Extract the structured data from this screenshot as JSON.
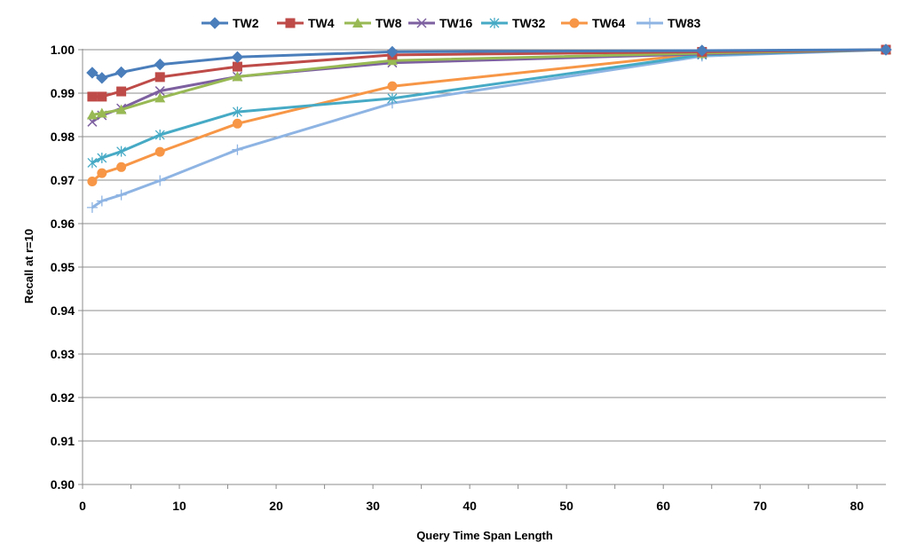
{
  "chart_data": {
    "type": "line",
    "title": "",
    "xlabel": "Query Time Span Length",
    "ylabel": "Recall at r=10",
    "xlim": [
      0,
      83
    ],
    "ylim": [
      0.9,
      1.0
    ],
    "xticks": [
      0,
      10,
      20,
      30,
      40,
      50,
      60,
      70,
      80
    ],
    "xtick_labels": [
      "0",
      "10",
      "20",
      "30",
      "40",
      "50",
      "60",
      "70",
      "80"
    ],
    "yticks": [
      0.9,
      0.91,
      0.92,
      0.93,
      0.94,
      0.95,
      0.96,
      0.97,
      0.98,
      0.99,
      1.0
    ],
    "ytick_labels": [
      "0.90",
      "0.91",
      "0.92",
      "0.93",
      "0.94",
      "0.95",
      "0.96",
      "0.97",
      "0.98",
      "0.99",
      "1.00"
    ],
    "grid": "horizontal",
    "legend_position": "top",
    "series": [
      {
        "name": "TW2",
        "color": "#4a7ebb",
        "marker": "diamond",
        "x": [
          1,
          2,
          4,
          8,
          16,
          32,
          64,
          83
        ],
        "y": [
          0.9947,
          0.9935,
          0.9948,
          0.9966,
          0.9983,
          0.9995,
          0.9998,
          1.0
        ]
      },
      {
        "name": "TW4",
        "color": "#be4b48",
        "marker": "square",
        "x": [
          1,
          2,
          4,
          8,
          16,
          32,
          64,
          83
        ],
        "y": [
          0.9892,
          0.9892,
          0.9904,
          0.9937,
          0.9961,
          0.9988,
          0.9995,
          1.0
        ]
      },
      {
        "name": "TW8",
        "color": "#98b954",
        "marker": "triangle",
        "x": [
          1,
          2,
          4,
          8,
          16,
          32,
          64,
          83
        ],
        "y": [
          0.985,
          0.9854,
          0.9862,
          0.9889,
          0.9938,
          0.9975,
          0.9992,
          1.0
        ]
      },
      {
        "name": "TW16",
        "color": "#7d60a0",
        "marker": "x",
        "x": [
          1,
          2,
          4,
          8,
          16,
          32,
          64,
          83
        ],
        "y": [
          0.9834,
          0.9849,
          0.9865,
          0.9905,
          0.9938,
          0.997,
          0.999,
          1.0
        ]
      },
      {
        "name": "TW32",
        "color": "#46aac5",
        "marker": "star",
        "x": [
          1,
          2,
          4,
          8,
          16,
          32,
          64,
          83
        ],
        "y": [
          0.974,
          0.9751,
          0.9766,
          0.9804,
          0.9857,
          0.9888,
          0.9988,
          1.0
        ]
      },
      {
        "name": "TW64",
        "color": "#f79646",
        "marker": "circle",
        "x": [
          1,
          2,
          4,
          8,
          16,
          32,
          64,
          83
        ],
        "y": [
          0.9697,
          0.9716,
          0.973,
          0.9765,
          0.983,
          0.9916,
          0.9991,
          1.0
        ]
      },
      {
        "name": "TW83",
        "color": "#8eb4e3",
        "marker": "plus",
        "x": [
          1,
          2,
          4,
          8,
          16,
          32,
          64,
          83
        ],
        "y": [
          0.9637,
          0.9652,
          0.9666,
          0.9699,
          0.977,
          0.9877,
          0.9985,
          1.0
        ]
      }
    ]
  }
}
